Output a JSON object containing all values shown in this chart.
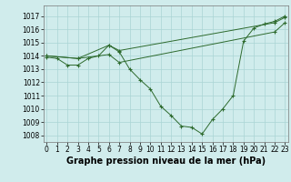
{
  "main_x": [
    0,
    1,
    2,
    3,
    4,
    5,
    6,
    7,
    8,
    9,
    10,
    11,
    12,
    13,
    14,
    15,
    16,
    17,
    18,
    19,
    20,
    21,
    22,
    23
  ],
  "main_y": [
    1013.9,
    1013.8,
    1013.3,
    1013.3,
    1013.8,
    1014.0,
    1014.8,
    1014.3,
    1013.0,
    1012.2,
    1011.5,
    1010.2,
    1009.5,
    1008.7,
    1008.6,
    1008.1,
    1009.2,
    1010.0,
    1011.0,
    1015.1,
    1016.1,
    1016.4,
    1016.6,
    1017.0
  ],
  "line2_x": [
    0,
    3,
    6,
    7,
    22,
    23
  ],
  "line2_y": [
    1014.0,
    1013.8,
    1014.8,
    1014.4,
    1016.5,
    1016.9
  ],
  "line3_x": [
    0,
    3,
    6,
    7,
    22,
    23
  ],
  "line3_y": [
    1014.0,
    1013.8,
    1014.1,
    1013.5,
    1015.8,
    1016.5
  ],
  "ylim_min": 1007.5,
  "ylim_max": 1017.8,
  "xlim_min": -0.3,
  "xlim_max": 23.3,
  "yticks": [
    1008,
    1009,
    1010,
    1011,
    1012,
    1013,
    1014,
    1015,
    1016,
    1017
  ],
  "xticks": [
    0,
    1,
    2,
    3,
    4,
    5,
    6,
    7,
    8,
    9,
    10,
    11,
    12,
    13,
    14,
    15,
    16,
    17,
    18,
    19,
    20,
    21,
    22,
    23
  ],
  "xlabel": "Graphe pression niveau de la mer (hPa)",
  "bg_color": "#d0ecec",
  "grid_color": "#aad4d4",
  "line_color": "#2d6a2d",
  "tick_fontsize": 5.5,
  "label_fontsize": 7.0,
  "figsize": [
    3.2,
    2.0
  ],
  "dpi": 100
}
